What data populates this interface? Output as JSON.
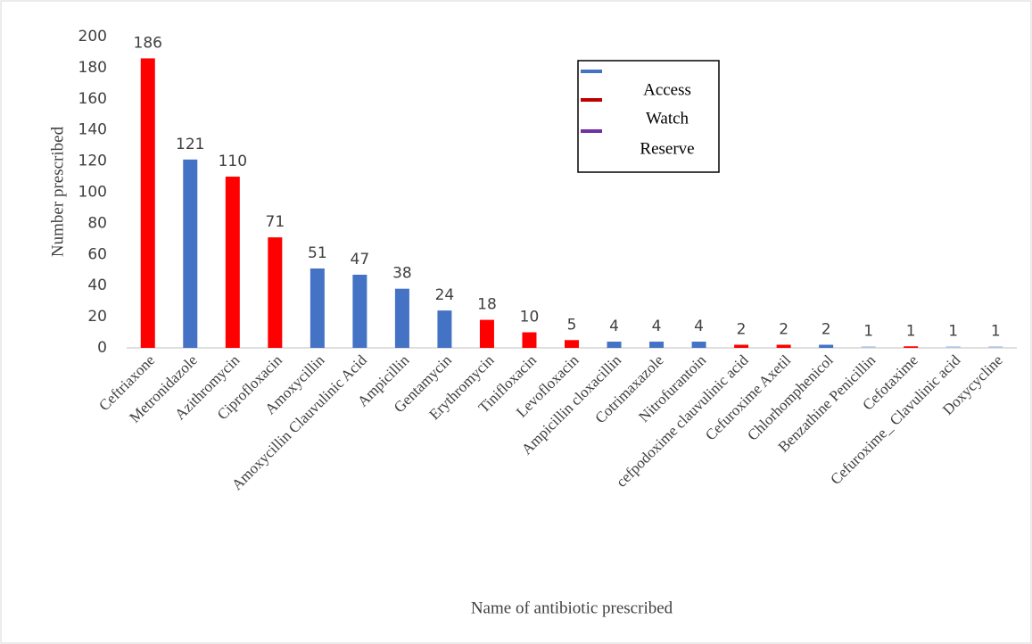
{
  "chart_data": {
    "type": "bar",
    "categories": [
      "Ceftriaxone",
      "Metronidazole",
      "Azithromycin",
      "Ciprofloxacin",
      "Amoxycillin",
      "Amoxycillin Clauvulinic Acid",
      "Ampicillin",
      "Gentamycin",
      "Erythromycin",
      "Tinifloxacin",
      "Levofloxacin",
      "Ampicillin cloxacillin",
      "Cotrimaxazole",
      "Nitrofurantoin",
      "cefpodoxime clauvulinic acid",
      "Cefuroxime Axetil",
      "Chlorhomphenicol",
      "Benzathine Penicillin",
      "Cefotaxime",
      "Cefuroxime_ Clavulinic acid",
      "Doxycycline"
    ],
    "values": [
      186,
      121,
      110,
      71,
      51,
      47,
      38,
      24,
      18,
      10,
      5,
      4,
      4,
      4,
      2,
      2,
      2,
      1,
      1,
      1,
      1
    ],
    "colors": [
      "#ff0000",
      "#4472c4",
      "#ff0000",
      "#ff0000",
      "#4472c4",
      "#4472c4",
      "#4472c4",
      "#4472c4",
      "#ff0000",
      "#ff0000",
      "#ff0000",
      "#4472c4",
      "#4472c4",
      "#4472c4",
      "#ff0000",
      "#ff0000",
      "#4472c4",
      "#b4c7e7",
      "#ff0000",
      "#b4c7e7",
      "#b4c7e7"
    ],
    "ylim": [
      0,
      200
    ],
    "yticks": [
      0,
      20,
      40,
      60,
      80,
      100,
      120,
      140,
      160,
      180,
      200
    ],
    "y_label": "Number prescribed",
    "x_label": "Name of antibiotic prescribed",
    "legend": [
      {
        "name": "Access",
        "color": "#4472c4"
      },
      {
        "name": "Watch",
        "color": "#c00000"
      },
      {
        "name": "Reserve",
        "color": "#7030a0"
      }
    ]
  }
}
